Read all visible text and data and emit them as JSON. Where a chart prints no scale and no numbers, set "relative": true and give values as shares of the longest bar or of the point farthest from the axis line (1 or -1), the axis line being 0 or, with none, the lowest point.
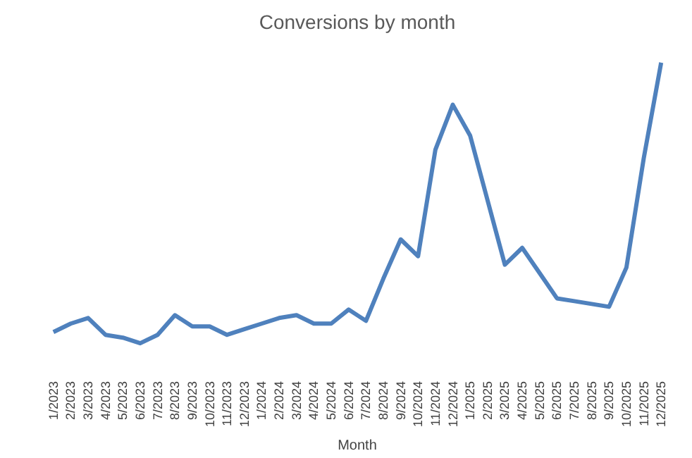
{
  "chart_data": {
    "type": "line",
    "title": "Conversions by month",
    "xlabel": "Month",
    "relative": true,
    "grid": false,
    "categories": [
      "1/2023",
      "2/2023",
      "3/2023",
      "4/2023",
      "5/2023",
      "6/2023",
      "7/2023",
      "8/2023",
      "9/2023",
      "10/2023",
      "11/2023",
      "12/2023",
      "1/2024",
      "2/2024",
      "3/2024",
      "4/2024",
      "5/2024",
      "6/2024",
      "7/2024",
      "8/2024",
      "9/2024",
      "10/2024",
      "11/2024",
      "12/2024",
      "1/2025",
      "2/2025",
      "3/2025",
      "4/2025",
      "5/2025",
      "6/2025",
      "7/2025",
      "8/2025",
      "9/2025",
      "10/2025",
      "11/2025",
      "12/2025"
    ],
    "series": [
      {
        "color": "#4f81bd",
        "values": [
          0.04,
          0.07,
          0.09,
          0.03,
          0.02,
          0,
          0.03,
          0.1,
          0.06,
          0.06,
          0.03,
          0.05,
          0.07,
          0.09,
          0.1,
          0.07,
          0.07,
          0.12,
          0.08,
          0.23,
          0.37,
          0.31,
          0.69,
          0.85,
          0.74,
          0.51,
          0.28,
          0.34,
          0.25,
          0.16,
          0.15,
          0.14,
          0.13,
          0.27,
          0.66,
          1
        ]
      }
    ]
  }
}
